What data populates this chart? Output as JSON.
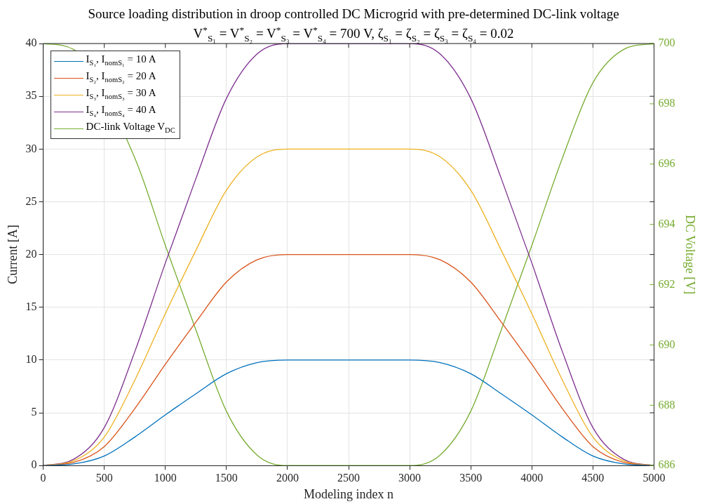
{
  "chart_data": {
    "type": "line",
    "title": "Source loading distribution in droop controlled DC Microgrid with pre-determined DC-link voltage",
    "subtitle": "V$^{*}$$_{S₁}$ = V$^{*}$$_{S₂}$ = V$^{*}$$_{S₃}$ = V$^{*}$$_{S₄}$ = 700 V, ζ$_{S₁}$ = ζ$_{S₂}$ = ζ$_{S₃}$ = ζ$_{S₄}$ = 0.02",
    "xlabel": "Modeling index n",
    "ylabel": "Current [A]",
    "y2label": "DC Voltage [V]",
    "x": [
      0,
      250,
      500,
      750,
      1000,
      1250,
      1500,
      1750,
      2000,
      2500,
      3000,
      3250,
      3500,
      3750,
      4000,
      4250,
      4500,
      4750,
      5000
    ],
    "series": [
      {
        "name": "I$_{S₁}$, I$_{nomS₁}$ = 10 A",
        "color": "#0072bd",
        "values": [
          0,
          0.15,
          0.9,
          2.7,
          4.8,
          6.8,
          8.7,
          9.75,
          10,
          10,
          10,
          9.75,
          8.7,
          6.8,
          4.8,
          2.7,
          0.9,
          0.15,
          0
        ]
      },
      {
        "name": "I$_{S₂}$, I$_{nomS₂}$ = 20 A",
        "color": "#d95319",
        "values": [
          0,
          0.3,
          1.8,
          5.4,
          9.6,
          13.6,
          17.4,
          19.5,
          20,
          20,
          20,
          19.5,
          17.4,
          13.6,
          9.6,
          5.4,
          1.8,
          0.3,
          0
        ]
      },
      {
        "name": "I$_{S₃}$, I$_{nomS₃}$ = 30 A",
        "color": "#edb120",
        "values": [
          0,
          0.45,
          2.7,
          8.1,
          14.4,
          20.4,
          26.1,
          29.25,
          30,
          30,
          30,
          29.25,
          26.1,
          20.4,
          14.4,
          8.1,
          2.7,
          0.45,
          0
        ]
      },
      {
        "name": "I$_{S₄}$, I$_{nomS₄}$ = 40 A",
        "color": "#7e2f8e",
        "values": [
          0,
          0.6,
          3.6,
          10.8,
          19.2,
          27.2,
          34.8,
          39,
          40,
          40,
          40,
          39,
          34.8,
          27.2,
          19.2,
          10.8,
          3.6,
          0.6,
          0
        ]
      },
      {
        "name": "DC-link Voltage V$_{DC}$",
        "color": "#77ac30",
        "axis": "y2",
        "values": [
          700,
          699.8,
          null,
          696.2,
          693.3,
          690.5,
          687.8,
          686.35,
          686,
          686,
          686,
          686.35,
          687.8,
          690.5,
          693.3,
          696.2,
          698.7,
          699.8,
          700
        ]
      }
    ],
    "xlim": [
      0,
      5000
    ],
    "xticks": [
      0,
      500,
      1000,
      1500,
      2000,
      2500,
      3000,
      3500,
      4000,
      4500,
      5000
    ],
    "ylim": [
      0,
      40
    ],
    "yticks": [
      0,
      5,
      10,
      15,
      20,
      25,
      30,
      35,
      40
    ],
    "y2lim": [
      686,
      700
    ],
    "y2ticks": [
      686,
      688,
      690,
      692,
      694,
      696,
      698,
      700
    ],
    "grid": true,
    "legend": "top left",
    "marker": "none",
    "line_style": "solid"
  }
}
